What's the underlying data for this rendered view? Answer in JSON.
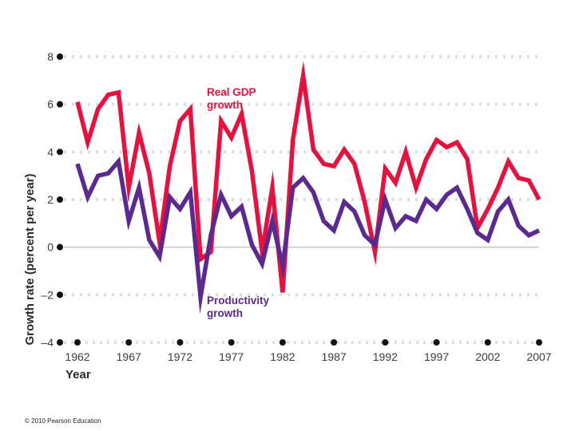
{
  "chart_data": {
    "type": "line",
    "title": "",
    "xlabel": "Year",
    "ylabel": "Growth rate (percent per year)",
    "xlim": [
      1962,
      2007
    ],
    "ylim": [
      -4,
      8
    ],
    "x_ticks": [
      "1962",
      "1967",
      "1972",
      "1977",
      "1982",
      "1987",
      "1992",
      "1997",
      "2002",
      "2007"
    ],
    "y_ticks": [
      "8",
      "6",
      "4",
      "2",
      "0",
      "–2",
      "–4"
    ],
    "x": [
      1962,
      1963,
      1964,
      1965,
      1966,
      1967,
      1968,
      1969,
      1970,
      1971,
      1972,
      1973,
      1974,
      1975,
      1976,
      1977,
      1978,
      1979,
      1980,
      1981,
      1982,
      1983,
      1984,
      1985,
      1986,
      1987,
      1988,
      1989,
      1990,
      1991,
      1992,
      1993,
      1994,
      1995,
      1996,
      1997,
      1998,
      1999,
      2000,
      2001,
      2002,
      2003,
      2004,
      2005,
      2006,
      2007
    ],
    "series": [
      {
        "name": "Real GDP growth",
        "label_lines": [
          "Real GDP",
          "growth"
        ],
        "color": "#e8113d",
        "values": [
          6.1,
          4.4,
          5.8,
          6.4,
          6.5,
          2.5,
          4.8,
          3.1,
          0.2,
          3.4,
          5.3,
          5.8,
          -0.5,
          -0.2,
          5.3,
          4.6,
          5.6,
          3.2,
          -0.2,
          2.5,
          -1.9,
          4.5,
          7.2,
          4.1,
          3.5,
          3.4,
          4.1,
          3.5,
          1.9,
          -0.2,
          3.3,
          2.7,
          4.0,
          2.5,
          3.7,
          4.5,
          4.2,
          4.4,
          3.7,
          0.8,
          1.6,
          2.5,
          3.6,
          2.9,
          2.8,
          2.0
        ]
      },
      {
        "name": "Productivity growth",
        "label_lines": [
          "Productivity",
          "growth"
        ],
        "color": "#5b2a91",
        "values": [
          3.5,
          2.1,
          3.0,
          3.1,
          3.6,
          1.1,
          2.5,
          0.3,
          -0.4,
          2.1,
          1.6,
          2.3,
          -2.1,
          0.5,
          2.2,
          1.3,
          1.7,
          0.1,
          -0.7,
          1.1,
          -0.8,
          2.5,
          2.9,
          2.3,
          1.1,
          0.7,
          1.9,
          1.5,
          0.5,
          0.1,
          2.0,
          0.8,
          1.3,
          1.1,
          2.0,
          1.6,
          2.2,
          2.5,
          1.6,
          0.6,
          0.3,
          1.5,
          2.0,
          0.9,
          0.5,
          0.7
        ]
      }
    ]
  },
  "footer": {
    "credit": "© 2010 Pearson Education"
  }
}
